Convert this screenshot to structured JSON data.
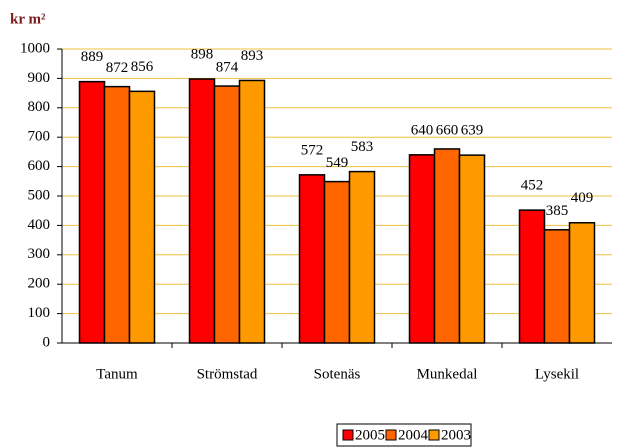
{
  "chart_data": {
    "type": "bar",
    "title": "kr m²",
    "categories": [
      "Tanum",
      "Strömstad",
      "Sotenäs",
      "Munkedal",
      "Lysekil"
    ],
    "series": [
      {
        "name": "2005",
        "color": "#ff0000",
        "values": [
          889,
          898,
          572,
          640,
          452
        ]
      },
      {
        "name": "2004",
        "color": "#ff6600",
        "values": [
          872,
          874,
          549,
          660,
          385
        ]
      },
      {
        "name": "2003",
        "color": "#ff9900",
        "values": [
          856,
          893,
          583,
          639,
          409
        ]
      }
    ],
    "ylim": [
      0,
      1000
    ],
    "yticks": [
      0,
      100,
      200,
      300,
      400,
      500,
      600,
      700,
      800,
      900,
      1000
    ],
    "grid": true,
    "legend": "bottom"
  }
}
